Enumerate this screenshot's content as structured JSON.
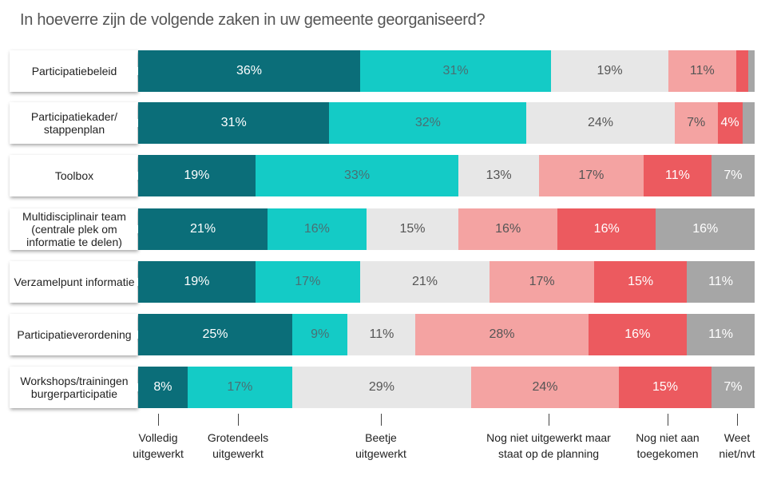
{
  "chart_data": {
    "type": "stacked-bar-horizontal-percent",
    "title": "In hoeverre zijn de volgende zaken in uw gemeente georganiseerd?",
    "categories": [
      "Participatiebeleid",
      "Participatiekader/ stappenplan",
      "Toolbox",
      "Multidisciplinair team (centrale plek om informatie te delen)",
      "Verzamelpunt informatie",
      "Participatieverordening",
      "Workshops/trainingen burgerparticipatie"
    ],
    "series": [
      {
        "name": "Volledig uitgewerkt",
        "color": "#0b6e79",
        "values": [
          36,
          31,
          19,
          21,
          19,
          25,
          8
        ],
        "value_labels": [
          "36%",
          "31%",
          "19%",
          "21%",
          "19%",
          "25%",
          "8%"
        ]
      },
      {
        "name": "Grotendeels uitgewerkt",
        "color": "#14cbc6",
        "values": [
          31,
          32,
          33,
          16,
          17,
          9,
          17
        ],
        "value_labels": [
          "31%",
          "32%",
          "33%",
          "16%",
          "17%",
          "9%",
          "17%"
        ]
      },
      {
        "name": "Beetje uitgewerkt",
        "color": "#e7e7e7",
        "values": [
          19,
          24,
          13,
          15,
          21,
          11,
          29
        ],
        "value_labels": [
          "19%",
          "24%",
          "13%",
          "15%",
          "21%",
          "11%",
          "29%"
        ]
      },
      {
        "name": "Nog niet uitgewerkt maar staat op de planning",
        "color": "#f4a3a2",
        "values": [
          11,
          7,
          17,
          16,
          17,
          28,
          24
        ],
        "value_labels": [
          "11%",
          "7%",
          "17%",
          "16%",
          "17%",
          "28%",
          "24%"
        ]
      },
      {
        "name": "Nog niet aan toegekomen",
        "color": "#ec5a5f",
        "values": [
          2,
          4,
          11,
          16,
          15,
          16,
          15
        ],
        "value_labels": [
          null,
          "4%",
          "11%",
          "16%",
          "15%",
          "16%",
          "15%"
        ]
      },
      {
        "name": "Weet niet/nvt",
        "color": "#a6a6a6",
        "values": [
          1,
          2,
          7,
          16,
          11,
          11,
          7
        ],
        "value_labels": [
          null,
          null,
          "7%",
          "16%",
          "11%",
          "11%",
          "7%"
        ]
      }
    ],
    "xlim": [
      0,
      100
    ]
  }
}
